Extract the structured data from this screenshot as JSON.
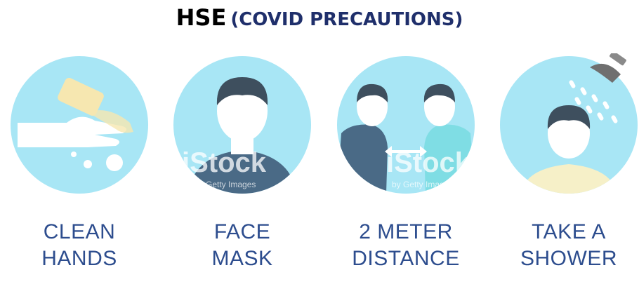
{
  "title": {
    "main": "HSE",
    "sub": "(COVID PRECAUTIONS)"
  },
  "colors": {
    "circle": "#a8e6f5",
    "title_sub": "#1f2f6b",
    "label": "#2d4d8e",
    "hair": "#3e4f5e",
    "skin": "#ffffff",
    "shirt": "#4a6a86"
  },
  "watermark": {
    "brand": "iStock",
    "credit": "by Getty Images"
  },
  "tiles": [
    {
      "icon": "clean-hands-icon",
      "line1": "CLEAN",
      "line2": "HANDS"
    },
    {
      "icon": "face-mask-icon",
      "line1": "FACE",
      "line2": "MASK"
    },
    {
      "icon": "distance-icon",
      "line1": "2 METER",
      "line2": "DISTANCE"
    },
    {
      "icon": "shower-icon",
      "line1": "TAKE A",
      "line2": "SHOWER"
    }
  ]
}
